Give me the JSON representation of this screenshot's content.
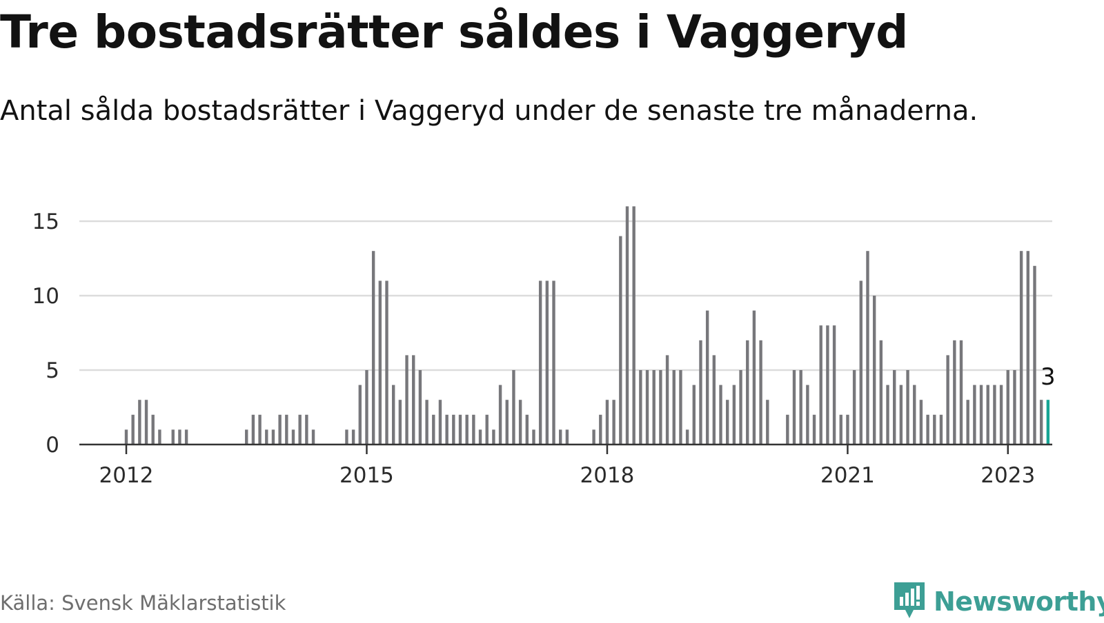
{
  "title": "Tre bostadsrätter såldes i Vaggeryd",
  "subtitle": "Antal sålda bostadsrätter i Vaggeryd under de senaste tre månaderna.",
  "source": "Källa: Svensk Mäklarstatistik",
  "brand": {
    "name": "Newsworthy",
    "icon": "newsworthy-logo-icon"
  },
  "colors": {
    "bar": "#77777b",
    "highlight": "#17a595",
    "grid": "#dcdcdc",
    "axis": "#333333",
    "brand": "#3d9f95"
  },
  "chart_data": {
    "type": "bar",
    "title": "Tre bostadsrätter såldes i Vaggeryd",
    "subtitle": "Antal sålda bostadsrätter i Vaggeryd under de senaste tre månaderna.",
    "xlabel": "",
    "ylabel": "",
    "ylim": [
      0,
      16
    ],
    "y_ticks": [
      0,
      5,
      10,
      15
    ],
    "x_ticks": [
      "2012",
      "2015",
      "2018",
      "2021",
      "2023"
    ],
    "grid": true,
    "start": "2011-06",
    "end": "2023-01",
    "highlight_label": "3",
    "series": [
      {
        "values": [
          0,
          0,
          0,
          0,
          0,
          0,
          0,
          1,
          2,
          3,
          3,
          2,
          1,
          0,
          1,
          1,
          1,
          0,
          0,
          0,
          0,
          0,
          0,
          0,
          0,
          1,
          2,
          2,
          1,
          1,
          2,
          2,
          1,
          2,
          2,
          1,
          0,
          0,
          0,
          0,
          1,
          1,
          4,
          5,
          13,
          11,
          11,
          4,
          3,
          6,
          6,
          5,
          3,
          2,
          3,
          2,
          2,
          2,
          2,
          2,
          1,
          2,
          1,
          4,
          3,
          5,
          3,
          2,
          1,
          11,
          11,
          11,
          1,
          1,
          0,
          0,
          0,
          1,
          2,
          3,
          3,
          14,
          16,
          16,
          5,
          5,
          5,
          5,
          6,
          5,
          5,
          1,
          4,
          7,
          9,
          6,
          4,
          3,
          4,
          5,
          7,
          9,
          7,
          3,
          0,
          0,
          2,
          5,
          5,
          4,
          2,
          8,
          8,
          8,
          2,
          2,
          5,
          11,
          13,
          10,
          7,
          4,
          5,
          4,
          5,
          4,
          3,
          2,
          2,
          2,
          6,
          7,
          7,
          3,
          4,
          4,
          4,
          4,
          4,
          5,
          5,
          13,
          13,
          12,
          3,
          3
        ]
      }
    ]
  }
}
